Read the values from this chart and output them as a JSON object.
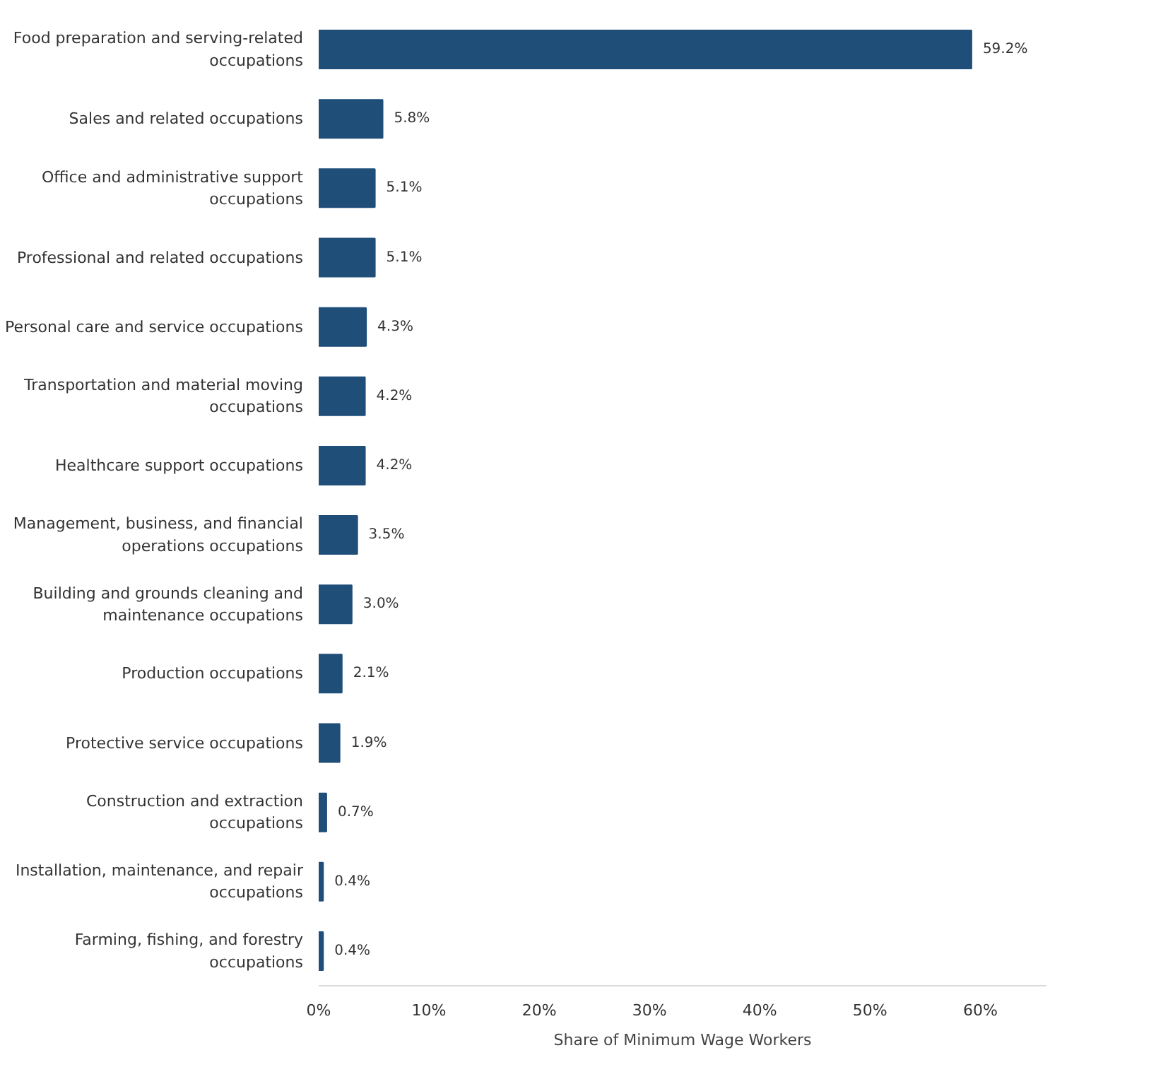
{
  "chart_data": {
    "type": "bar",
    "orientation": "horizontal",
    "xlabel": "Share of Minimum Wage Workers",
    "categories": [
      "Food preparation and serving-related occupations",
      "Sales and related occupations",
      "Office and administrative support occupations",
      "Professional and related occupations",
      "Personal care and service occupations",
      "Transportation and material moving occupations",
      "Healthcare support occupations",
      "Management, business, and financial operations occupations",
      "Building and grounds cleaning and maintenance occupations",
      "Production occupations",
      "Protective service occupations",
      "Construction and extraction occupations",
      "Installation, maintenance, and repair occupations",
      "Farming, fishing, and forestry occupations"
    ],
    "values": [
      59.2,
      5.8,
      5.1,
      5.1,
      4.3,
      4.2,
      4.2,
      3.5,
      3.0,
      2.1,
      1.9,
      0.7,
      0.4,
      0.4
    ],
    "value_labels": [
      "59.2%",
      "5.8%",
      "5.1%",
      "5.1%",
      "4.3%",
      "4.2%",
      "4.2%",
      "3.5%",
      "3.0%",
      "2.1%",
      "1.9%",
      "0.7%",
      "0.4%",
      "0.4%"
    ],
    "color": "#1f4e79",
    "xlim": [
      0,
      66
    ],
    "xticks": [
      {
        "value": 0,
        "label": "0%"
      },
      {
        "value": 10,
        "label": "10%"
      },
      {
        "value": 20,
        "label": "20%"
      },
      {
        "value": 30,
        "label": "30%"
      },
      {
        "value": 40,
        "label": "40%"
      },
      {
        "value": 50,
        "label": "50%"
      },
      {
        "value": 60,
        "label": "60%"
      }
    ],
    "grid": false
  }
}
